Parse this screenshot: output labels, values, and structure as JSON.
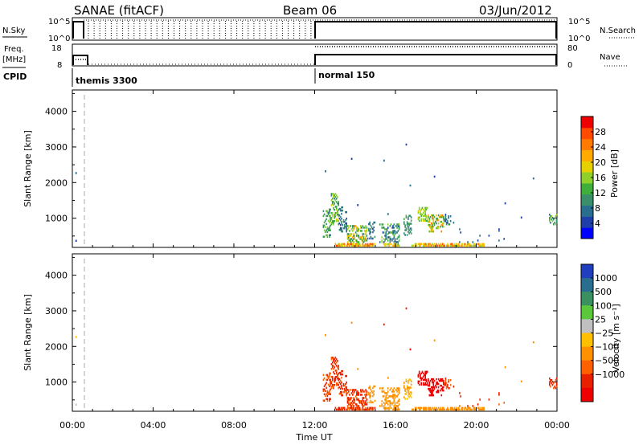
{
  "header": {
    "title": "SANAE (fitACF)",
    "beam": "Beam 06",
    "date": "03/Jun/2012"
  },
  "panels": {
    "nsky": {
      "label": "N.Sky",
      "ticks_left": [
        "10^5",
        "10^0"
      ],
      "ticks_right": [
        "10^5",
        "10^0"
      ],
      "right_label": "N.Search"
    },
    "freq": {
      "label_line1": "Freq.",
      "label_line2": "[MHz]",
      "ticks_left": [
        "18",
        "8"
      ],
      "ticks_right": [
        "80",
        "0"
      ],
      "right_label": "Nave"
    },
    "cpid": {
      "label": "CPID",
      "segments": [
        {
          "text": "themis 3300",
          "start_hour": 0.0
        },
        {
          "text": "normal 150",
          "start_hour": 12.0
        }
      ]
    }
  },
  "chart_data": [
    {
      "type": "heatmap",
      "name": "power",
      "ylabel": "Slant Range [km]",
      "yticks": [
        "4000",
        "3000",
        "2000",
        "1000"
      ],
      "ytick_values": [
        4000,
        3000,
        2000,
        1000
      ],
      "ylim": [
        180,
        4600
      ],
      "xlim": [
        0,
        24
      ],
      "colorbar_label": "Power [dB]",
      "colorbar_ticks": [
        "28",
        "24",
        "20",
        "16",
        "12",
        "8",
        "4"
      ],
      "colorbar_tick_values": [
        28,
        24,
        20,
        16,
        12,
        8,
        4
      ],
      "colorbar_range": [
        0,
        32
      ],
      "colorbar_colors": [
        "#0000ff",
        "#1e3fa8",
        "#2a6e8f",
        "#3a8f6a",
        "#3fae3a",
        "#8fd12a",
        "#e6d000",
        "#ffaa00",
        "#ff7a00",
        "#ff4a00",
        "#ee0000"
      ]
    },
    {
      "type": "heatmap",
      "name": "velocity",
      "ylabel": "Slant Range [km]",
      "yticks": [
        "4000",
        "3000",
        "2000",
        "1000"
      ],
      "ytick_values": [
        4000,
        3000,
        2000,
        1000
      ],
      "ylim": [
        180,
        4600
      ],
      "xlim": [
        0,
        24
      ],
      "colorbar_label": "Velocity [m s⁻¹]",
      "colorbar_ticks": [
        "1000",
        "500",
        "100",
        "25",
        "−25",
        "−100",
        "−500",
        "−1000"
      ],
      "colorbar_colors_top_to_bottom": [
        "#1f3fbf",
        "#2a6e8f",
        "#3a9060",
        "#5ac83a",
        "#c0c0c0",
        "#ffc000",
        "#ff9000",
        "#ff6000",
        "#e82000",
        "#ee0000"
      ]
    }
  ],
  "xaxis": {
    "label": "Time UT",
    "ticks": [
      "00:00",
      "04:00",
      "08:00",
      "12:00",
      "16:00",
      "20:00",
      "00:00"
    ],
    "tick_hours": [
      0,
      4,
      8,
      12,
      16,
      20,
      24
    ]
  },
  "scatter_regions": [
    {
      "t0": 12.4,
      "t1": 12.8,
      "r0": 450,
      "r1": 1250,
      "p": 0.35,
      "pw": [
        8,
        16
      ],
      "vel": [
        -100,
        -500
      ]
    },
    {
      "t0": 12.8,
      "t1": 13.2,
      "r0": 800,
      "r1": 1700,
      "p": 0.4,
      "pw": [
        8,
        18
      ],
      "vel": [
        -100,
        -500
      ]
    },
    {
      "t0": 13.2,
      "t1": 13.6,
      "r0": 600,
      "r1": 1300,
      "p": 0.35,
      "pw": [
        4,
        12
      ],
      "vel": [
        -100,
        -500
      ]
    },
    {
      "t0": 13.6,
      "t1": 14.6,
      "r0": 300,
      "r1": 800,
      "p": 0.45,
      "pw": [
        8,
        24
      ],
      "vel": [
        -100,
        -500
      ]
    },
    {
      "t0": 14.6,
      "t1": 15.0,
      "r0": 400,
      "r1": 900,
      "p": 0.25,
      "pw": [
        4,
        12
      ],
      "vel": [
        -25,
        -100
      ]
    },
    {
      "t0": 15.2,
      "t1": 16.2,
      "r0": 300,
      "r1": 850,
      "p": 0.35,
      "pw": [
        4,
        16
      ],
      "vel": [
        -100,
        -25
      ]
    },
    {
      "t0": 16.4,
      "t1": 16.8,
      "r0": 500,
      "r1": 1100,
      "p": 0.3,
      "pw": [
        8,
        12
      ],
      "vel": [
        -100,
        25
      ]
    },
    {
      "t0": 17.1,
      "t1": 17.6,
      "r0": 900,
      "r1": 1300,
      "p": 0.4,
      "pw": [
        12,
        20
      ],
      "vel": [
        -500,
        -1000
      ]
    },
    {
      "t0": 17.6,
      "t1": 18.4,
      "r0": 600,
      "r1": 1150,
      "p": 0.35,
      "pw": [
        8,
        24
      ],
      "vel": [
        -500,
        -1000
      ]
    },
    {
      "t0": 18.4,
      "t1": 18.9,
      "r0": 800,
      "r1": 1100,
      "p": 0.25,
      "pw": [
        4,
        12
      ],
      "vel": [
        -500,
        -100
      ]
    },
    {
      "t0": 13.0,
      "t1": 15.0,
      "r0": 200,
      "r1": 290,
      "p": 0.7,
      "pw": [
        16,
        28
      ],
      "vel": [
        -100,
        -500
      ]
    },
    {
      "t0": 15.4,
      "t1": 16.2,
      "r0": 200,
      "r1": 290,
      "p": 0.6,
      "pw": [
        12,
        24
      ],
      "vel": [
        -100,
        -25
      ]
    },
    {
      "t0": 16.8,
      "t1": 20.4,
      "r0": 200,
      "r1": 290,
      "p": 0.55,
      "pw": [
        16,
        28
      ],
      "vel": [
        -100,
        -25
      ]
    },
    {
      "t0": 19.0,
      "t1": 21.5,
      "r0": 300,
      "r1": 700,
      "p": 0.04,
      "pw": [
        4,
        8
      ],
      "vel": [
        -100,
        -500
      ]
    },
    {
      "t0": 23.6,
      "t1": 24.0,
      "r0": 800,
      "r1": 1100,
      "p": 0.35,
      "pw": [
        8,
        16
      ],
      "vel": [
        -500,
        -100
      ]
    }
  ],
  "isolated_points": [
    {
      "t": 0.15,
      "r": 2250,
      "p": 8,
      "v": -25
    },
    {
      "t": 0.15,
      "r": 350,
      "p": 4,
      "v": 25
    },
    {
      "t": 12.5,
      "r": 2300,
      "p": 8,
      "v": -100
    },
    {
      "t": 13.8,
      "r": 2650,
      "p": 4,
      "v": -100
    },
    {
      "t": 15.4,
      "r": 2600,
      "p": 8,
      "v": -500
    },
    {
      "t": 16.5,
      "r": 3050,
      "p": 4,
      "v": -500
    },
    {
      "t": 16.7,
      "r": 1900,
      "p": 8,
      "v": -1000
    },
    {
      "t": 17.9,
      "r": 2150,
      "p": 4,
      "v": -100
    },
    {
      "t": 21.4,
      "r": 1400,
      "p": 4,
      "v": -100
    },
    {
      "t": 22.2,
      "r": 1000,
      "p": 4,
      "v": -100
    },
    {
      "t": 22.8,
      "r": 2100,
      "p": 8,
      "v": -100
    },
    {
      "t": 15.6,
      "r": 1100,
      "p": 8,
      "v": -100
    },
    {
      "t": 14.1,
      "r": 1350,
      "p": 4,
      "v": -100
    }
  ]
}
